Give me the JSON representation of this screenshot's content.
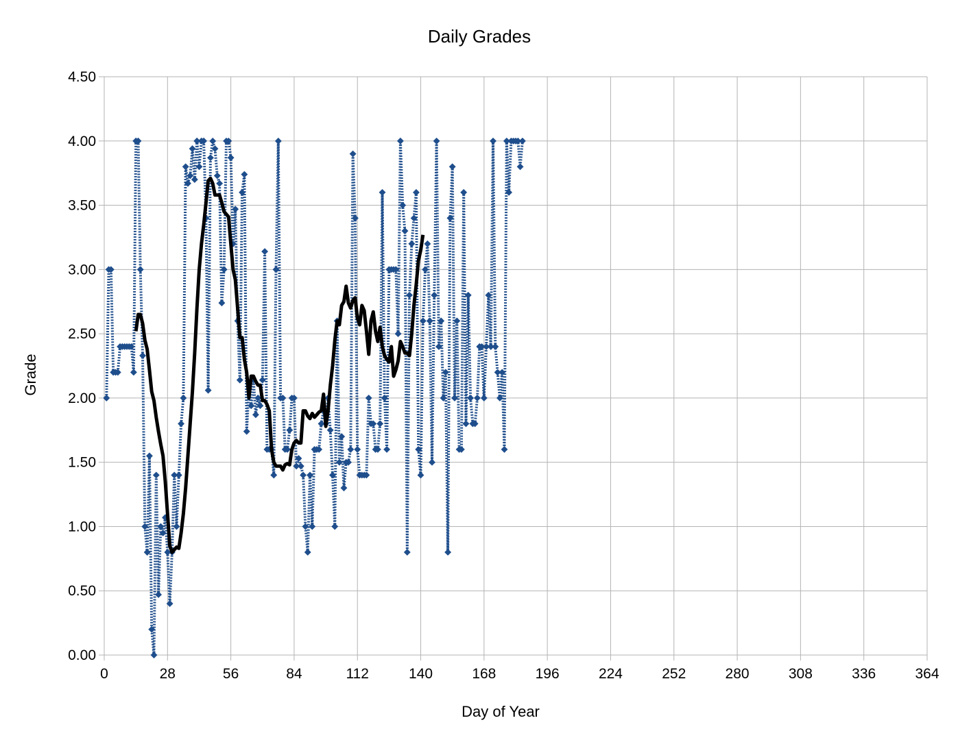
{
  "chart_data": {
    "type": "line",
    "title": "Daily Grades",
    "xlabel": "Day of Year",
    "ylabel": "Grade",
    "xlim": [
      0,
      364
    ],
    "ylim": [
      0,
      4.5
    ],
    "xticks": [
      0,
      28,
      56,
      84,
      112,
      140,
      168,
      196,
      224,
      252,
      280,
      308,
      336,
      364
    ],
    "yticks": [
      0,
      0.5,
      1.0,
      1.5,
      2.0,
      2.5,
      3.0,
      3.5,
      4.0,
      4.5
    ],
    "ytick_labels": [
      "0.00",
      "0.50",
      "1.00",
      "1.50",
      "2.00",
      "2.50",
      "3.00",
      "3.50",
      "4.00",
      "4.50"
    ],
    "grid": true,
    "legend": "none",
    "series": [
      {
        "style": "dotted-with-markers",
        "color": "#1f4e8c",
        "points": [
          [
            1,
            2.0
          ],
          [
            2,
            3.0
          ],
          [
            3,
            3.0
          ],
          [
            4,
            2.2
          ],
          [
            5,
            2.2
          ],
          [
            6,
            2.2
          ],
          [
            7,
            2.4
          ],
          [
            8,
            2.4
          ],
          [
            9,
            2.4
          ],
          [
            10,
            2.4
          ],
          [
            11,
            2.4
          ],
          [
            12,
            2.4
          ],
          [
            13,
            2.2
          ],
          [
            14,
            4.0
          ],
          [
            15,
            4.0
          ],
          [
            16,
            3.0
          ],
          [
            17,
            2.33
          ],
          [
            18,
            1.0
          ],
          [
            19,
            0.8
          ],
          [
            20,
            1.55
          ],
          [
            21,
            0.2
          ],
          [
            22,
            0.0
          ],
          [
            23,
            1.4
          ],
          [
            24,
            0.47
          ],
          [
            25,
            1.0
          ],
          [
            26,
            0.95
          ],
          [
            27,
            1.07
          ],
          [
            28,
            0.8
          ],
          [
            29,
            0.4
          ],
          [
            30,
            0.8
          ],
          [
            31,
            1.4
          ],
          [
            32,
            1.0
          ],
          [
            33,
            1.4
          ],
          [
            34,
            1.8
          ],
          [
            35,
            2.0
          ],
          [
            36,
            3.8
          ],
          [
            37,
            3.67
          ],
          [
            38,
            3.73
          ],
          [
            39,
            3.94
          ],
          [
            40,
            3.7
          ],
          [
            41,
            4.0
          ],
          [
            42,
            3.8
          ],
          [
            43,
            4.0
          ],
          [
            44,
            4.0
          ],
          [
            45,
            3.4
          ],
          [
            46,
            2.06
          ],
          [
            47,
            3.87
          ],
          [
            48,
            4.0
          ],
          [
            49,
            3.94
          ],
          [
            50,
            3.73
          ],
          [
            51,
            3.67
          ],
          [
            52,
            2.74
          ],
          [
            53,
            3.0
          ],
          [
            54,
            4.0
          ],
          [
            55,
            4.0
          ],
          [
            56,
            3.87
          ],
          [
            57,
            3.2
          ],
          [
            58,
            3.47
          ],
          [
            59,
            2.6
          ],
          [
            60,
            2.14
          ],
          [
            61,
            3.6
          ],
          [
            62,
            3.74
          ],
          [
            63,
            1.74
          ],
          [
            64,
            2.07
          ],
          [
            65,
            1.94
          ],
          [
            66,
            2.14
          ],
          [
            67,
            1.87
          ],
          [
            68,
            2.0
          ],
          [
            69,
            1.94
          ],
          [
            70,
            2.14
          ],
          [
            71,
            3.14
          ],
          [
            72,
            1.6
          ],
          [
            73,
            1.6
          ],
          [
            74,
            1.6
          ],
          [
            75,
            1.4
          ],
          [
            76,
            3.0
          ],
          [
            77,
            4.0
          ],
          [
            78,
            2.0
          ],
          [
            79,
            2.0
          ],
          [
            80,
            1.6
          ],
          [
            81,
            1.6
          ],
          [
            82,
            1.75
          ],
          [
            83,
            2.0
          ],
          [
            84,
            2.0
          ],
          [
            85,
            1.47
          ],
          [
            86,
            1.53
          ],
          [
            87,
            1.47
          ],
          [
            88,
            1.4
          ],
          [
            89,
            1.0
          ],
          [
            90,
            0.8
          ],
          [
            91,
            1.4
          ],
          [
            92,
            1.0
          ],
          [
            93,
            1.6
          ],
          [
            94,
            1.6
          ],
          [
            95,
            1.6
          ],
          [
            96,
            1.8
          ],
          [
            97,
            1.9
          ],
          [
            98,
            1.8
          ],
          [
            99,
            2.0
          ],
          [
            100,
            1.75
          ],
          [
            101,
            1.4
          ],
          [
            102,
            1.0
          ],
          [
            103,
            2.6
          ],
          [
            104,
            1.5
          ],
          [
            105,
            1.7
          ],
          [
            106,
            1.3
          ],
          [
            107,
            1.5
          ],
          [
            108,
            1.5
          ],
          [
            109,
            1.6
          ],
          [
            110,
            3.9
          ],
          [
            111,
            3.4
          ],
          [
            112,
            1.6
          ],
          [
            113,
            1.4
          ],
          [
            114,
            1.4
          ],
          [
            115,
            1.4
          ],
          [
            116,
            1.4
          ],
          [
            117,
            2.0
          ],
          [
            118,
            1.8
          ],
          [
            119,
            1.8
          ],
          [
            120,
            1.6
          ],
          [
            121,
            1.6
          ],
          [
            122,
            1.8
          ],
          [
            123,
            3.6
          ],
          [
            124,
            2.0
          ],
          [
            125,
            1.6
          ],
          [
            126,
            3.0
          ],
          [
            127,
            3.0
          ],
          [
            128,
            3.0
          ],
          [
            129,
            3.0
          ],
          [
            130,
            2.5
          ],
          [
            131,
            4.0
          ],
          [
            132,
            3.5
          ],
          [
            133,
            3.3
          ],
          [
            134,
            0.8
          ],
          [
            135,
            2.8
          ],
          [
            136,
            3.2
          ],
          [
            137,
            3.4
          ],
          [
            138,
            3.6
          ],
          [
            139,
            1.6
          ],
          [
            140,
            1.4
          ],
          [
            141,
            2.6
          ],
          [
            142,
            3.0
          ],
          [
            143,
            3.2
          ],
          [
            144,
            2.6
          ],
          [
            145,
            1.5
          ],
          [
            146,
            2.8
          ],
          [
            147,
            4.0
          ],
          [
            148,
            2.4
          ],
          [
            149,
            2.6
          ],
          [
            150,
            2.0
          ],
          [
            151,
            2.2
          ],
          [
            152,
            0.8
          ],
          [
            153,
            3.4
          ],
          [
            154,
            3.8
          ],
          [
            155,
            2.0
          ],
          [
            156,
            2.6
          ],
          [
            157,
            1.6
          ],
          [
            158,
            1.6
          ],
          [
            159,
            3.6
          ],
          [
            160,
            1.8
          ],
          [
            161,
            2.8
          ],
          [
            162,
            2.0
          ],
          [
            163,
            1.8
          ],
          [
            164,
            1.8
          ],
          [
            165,
            2.0
          ],
          [
            166,
            2.4
          ],
          [
            167,
            2.4
          ],
          [
            168,
            2.0
          ],
          [
            169,
            2.4
          ],
          [
            170,
            2.8
          ],
          [
            171,
            2.4
          ],
          [
            172,
            4.0
          ],
          [
            173,
            2.4
          ],
          [
            174,
            2.2
          ],
          [
            175,
            2.0
          ],
          [
            176,
            2.2
          ],
          [
            177,
            1.6
          ],
          [
            178,
            4.0
          ],
          [
            179,
            3.6
          ],
          [
            180,
            4.0
          ],
          [
            181,
            4.0
          ],
          [
            182,
            4.0
          ],
          [
            183,
            4.0
          ],
          [
            184,
            3.8
          ],
          [
            185,
            4.0
          ]
        ]
      },
      {
        "style": "solid",
        "color": "#000000",
        "points": [
          [
            14,
            2.52
          ],
          [
            15,
            2.65
          ],
          [
            16,
            2.65
          ],
          [
            17,
            2.58
          ],
          [
            18,
            2.45
          ],
          [
            19,
            2.38
          ],
          [
            20,
            2.22
          ],
          [
            21,
            2.05
          ],
          [
            22,
            1.98
          ],
          [
            23,
            1.85
          ],
          [
            24,
            1.74
          ],
          [
            25,
            1.64
          ],
          [
            26,
            1.55
          ],
          [
            27,
            1.35
          ],
          [
            28,
            1.1
          ],
          [
            29,
            0.85
          ],
          [
            30,
            0.8
          ],
          [
            31,
            0.82
          ],
          [
            32,
            0.84
          ],
          [
            33,
            0.83
          ],
          [
            34,
            0.95
          ],
          [
            35,
            1.1
          ],
          [
            36,
            1.3
          ],
          [
            37,
            1.55
          ],
          [
            38,
            1.8
          ],
          [
            39,
            2.05
          ],
          [
            40,
            2.35
          ],
          [
            41,
            2.7
          ],
          [
            42,
            3.0
          ],
          [
            43,
            3.2
          ],
          [
            44,
            3.35
          ],
          [
            45,
            3.52
          ],
          [
            46,
            3.69
          ],
          [
            47,
            3.71
          ],
          [
            48,
            3.67
          ],
          [
            49,
            3.58
          ],
          [
            50,
            3.58
          ],
          [
            51,
            3.58
          ],
          [
            52,
            3.52
          ],
          [
            53,
            3.45
          ],
          [
            54,
            3.43
          ],
          [
            55,
            3.41
          ],
          [
            56,
            3.2
          ],
          [
            57,
            3.0
          ],
          [
            58,
            2.92
          ],
          [
            59,
            2.7
          ],
          [
            60,
            2.47
          ],
          [
            61,
            2.47
          ],
          [
            62,
            2.3
          ],
          [
            63,
            2.2
          ],
          [
            64,
            2.0
          ],
          [
            65,
            2.17
          ],
          [
            66,
            2.17
          ],
          [
            67,
            2.13
          ],
          [
            68,
            2.1
          ],
          [
            69,
            2.1
          ],
          [
            70,
            1.98
          ],
          [
            71,
            1.98
          ],
          [
            72,
            1.95
          ],
          [
            73,
            1.9
          ],
          [
            74,
            1.6
          ],
          [
            75,
            1.5
          ],
          [
            76,
            1.47
          ],
          [
            77,
            1.47
          ],
          [
            78,
            1.47
          ],
          [
            79,
            1.44
          ],
          [
            80,
            1.48
          ],
          [
            81,
            1.49
          ],
          [
            82,
            1.48
          ],
          [
            83,
            1.6
          ],
          [
            84,
            1.65
          ],
          [
            85,
            1.67
          ],
          [
            86,
            1.65
          ],
          [
            87,
            1.65
          ],
          [
            88,
            1.9
          ],
          [
            89,
            1.9
          ],
          [
            90,
            1.86
          ],
          [
            91,
            1.84
          ],
          [
            92,
            1.88
          ],
          [
            93,
            1.85
          ],
          [
            94,
            1.87
          ],
          [
            95,
            1.89
          ],
          [
            96,
            1.9
          ],
          [
            97,
            2.03
          ],
          [
            98,
            1.78
          ],
          [
            99,
            1.9
          ],
          [
            100,
            2.1
          ],
          [
            101,
            2.25
          ],
          [
            102,
            2.45
          ],
          [
            103,
            2.6
          ],
          [
            104,
            2.57
          ],
          [
            105,
            2.72
          ],
          [
            106,
            2.75
          ],
          [
            107,
            2.87
          ],
          [
            108,
            2.74
          ],
          [
            109,
            2.7
          ],
          [
            110,
            2.76
          ],
          [
            111,
            2.78
          ],
          [
            112,
            2.62
          ],
          [
            113,
            2.57
          ],
          [
            114,
            2.72
          ],
          [
            115,
            2.68
          ],
          [
            116,
            2.52
          ],
          [
            117,
            2.34
          ],
          [
            118,
            2.6
          ],
          [
            119,
            2.67
          ],
          [
            120,
            2.52
          ],
          [
            121,
            2.44
          ],
          [
            122,
            2.55
          ],
          [
            123,
            2.4
          ],
          [
            124,
            2.33
          ],
          [
            125,
            2.3
          ],
          [
            126,
            2.28
          ],
          [
            127,
            2.4
          ],
          [
            128,
            2.17
          ],
          [
            129,
            2.22
          ],
          [
            130,
            2.29
          ],
          [
            131,
            2.44
          ],
          [
            132,
            2.4
          ],
          [
            133,
            2.35
          ],
          [
            134,
            2.35
          ],
          [
            135,
            2.33
          ],
          [
            136,
            2.5
          ],
          [
            137,
            2.72
          ],
          [
            138,
            2.88
          ],
          [
            139,
            3.07
          ],
          [
            140,
            3.15
          ],
          [
            141,
            3.27
          ]
        ]
      }
    ]
  }
}
